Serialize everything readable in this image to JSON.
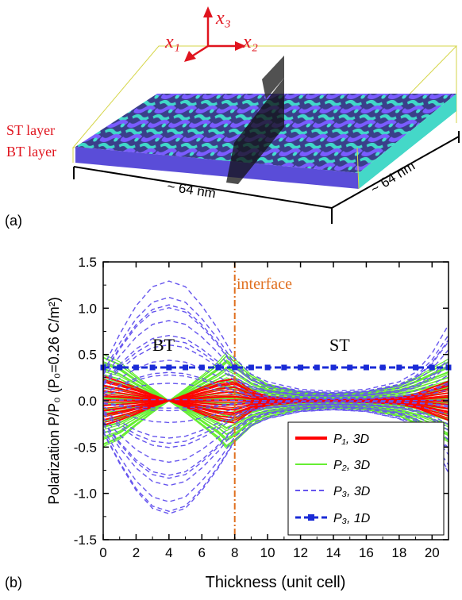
{
  "panel_a": {
    "label": "(a)",
    "axes": {
      "x1": "x₁",
      "x2": "x₂",
      "x3": "x₃"
    },
    "layer_labels": [
      "ST layer",
      "BT layer"
    ],
    "dim_front": "~ 64 nm",
    "dim_side": "~ 64 nm"
  },
  "panel_b": {
    "label": "(b)"
  },
  "chart_data": {
    "type": "line",
    "title": "",
    "xlabel": "Thickness (unit cell)",
    "ylabel": "Polarization P/P₀ (P₀=0.26 C/m²)",
    "xlim": [
      0,
      21
    ],
    "ylim": [
      -1.5,
      1.5
    ],
    "xticks": [
      "0",
      "2",
      "4",
      "6",
      "8",
      "10",
      "12",
      "14",
      "16",
      "18",
      "20"
    ],
    "yticks": [
      "-1.5",
      "-1.0",
      "-0.5",
      "0.0",
      "0.5",
      "1.0",
      "1.5"
    ],
    "annotations": {
      "interface": "interface",
      "interface_x": 8,
      "bt": "BT",
      "st": "ST"
    },
    "legend": [
      "P₁, 3D",
      "P₂, 3D",
      "P₃, 3D",
      "P₃, 1D"
    ],
    "colors": {
      "p1": "#ff0000",
      "p2": "#66ee33",
      "p3": "#6655ee",
      "p3_1d": "#1a2bd6",
      "interface": "#e07020"
    },
    "series": [
      {
        "name": "P₁, 3D",
        "envelope": {
          "x": [
            0,
            1,
            2,
            3,
            4,
            5,
            6,
            7,
            8,
            9,
            10,
            12,
            14,
            16,
            18,
            19,
            20,
            21
          ],
          "max": [
            0.28,
            0.22,
            0.15,
            0.07,
            0.0,
            0.07,
            0.15,
            0.22,
            0.25,
            0.12,
            0.05,
            0.02,
            0.01,
            0.02,
            0.04,
            0.08,
            0.15,
            0.22
          ]
        }
      },
      {
        "name": "P₂, 3D",
        "envelope": {
          "x": [
            0,
            1,
            2,
            3,
            4,
            5,
            6,
            7,
            7.5,
            8,
            9,
            10,
            12,
            14,
            16,
            18,
            19,
            20,
            21
          ],
          "max": [
            0.5,
            0.42,
            0.27,
            0.13,
            0.0,
            0.13,
            0.27,
            0.42,
            0.52,
            0.45,
            0.28,
            0.18,
            0.1,
            0.08,
            0.1,
            0.17,
            0.25,
            0.35,
            0.45
          ]
        }
      },
      {
        "name": "P₃, 3D",
        "envelope": {
          "x": [
            0,
            1,
            2,
            3,
            4,
            5,
            6,
            7,
            8,
            9,
            10,
            11,
            12,
            14,
            16,
            18,
            19,
            20,
            21
          ],
          "max": [
            0.35,
            0.7,
            1.0,
            1.2,
            1.26,
            1.2,
            1.0,
            0.75,
            0.45,
            0.28,
            0.2,
            0.16,
            0.12,
            0.1,
            0.12,
            0.2,
            0.3,
            0.5,
            0.8
          ]
        }
      },
      {
        "name": "P₃, 1D",
        "x": [
          0,
          1,
          2,
          3,
          4,
          5,
          6,
          7,
          8,
          9,
          10,
          11,
          12,
          13,
          14,
          15,
          16,
          17,
          18,
          19,
          20,
          21
        ],
        "y": [
          0.36,
          0.36,
          0.36,
          0.36,
          0.36,
          0.36,
          0.36,
          0.36,
          0.36,
          0.36,
          0.36,
          0.36,
          0.36,
          0.36,
          0.36,
          0.36,
          0.36,
          0.36,
          0.36,
          0.36,
          0.36,
          0.36
        ]
      }
    ]
  }
}
